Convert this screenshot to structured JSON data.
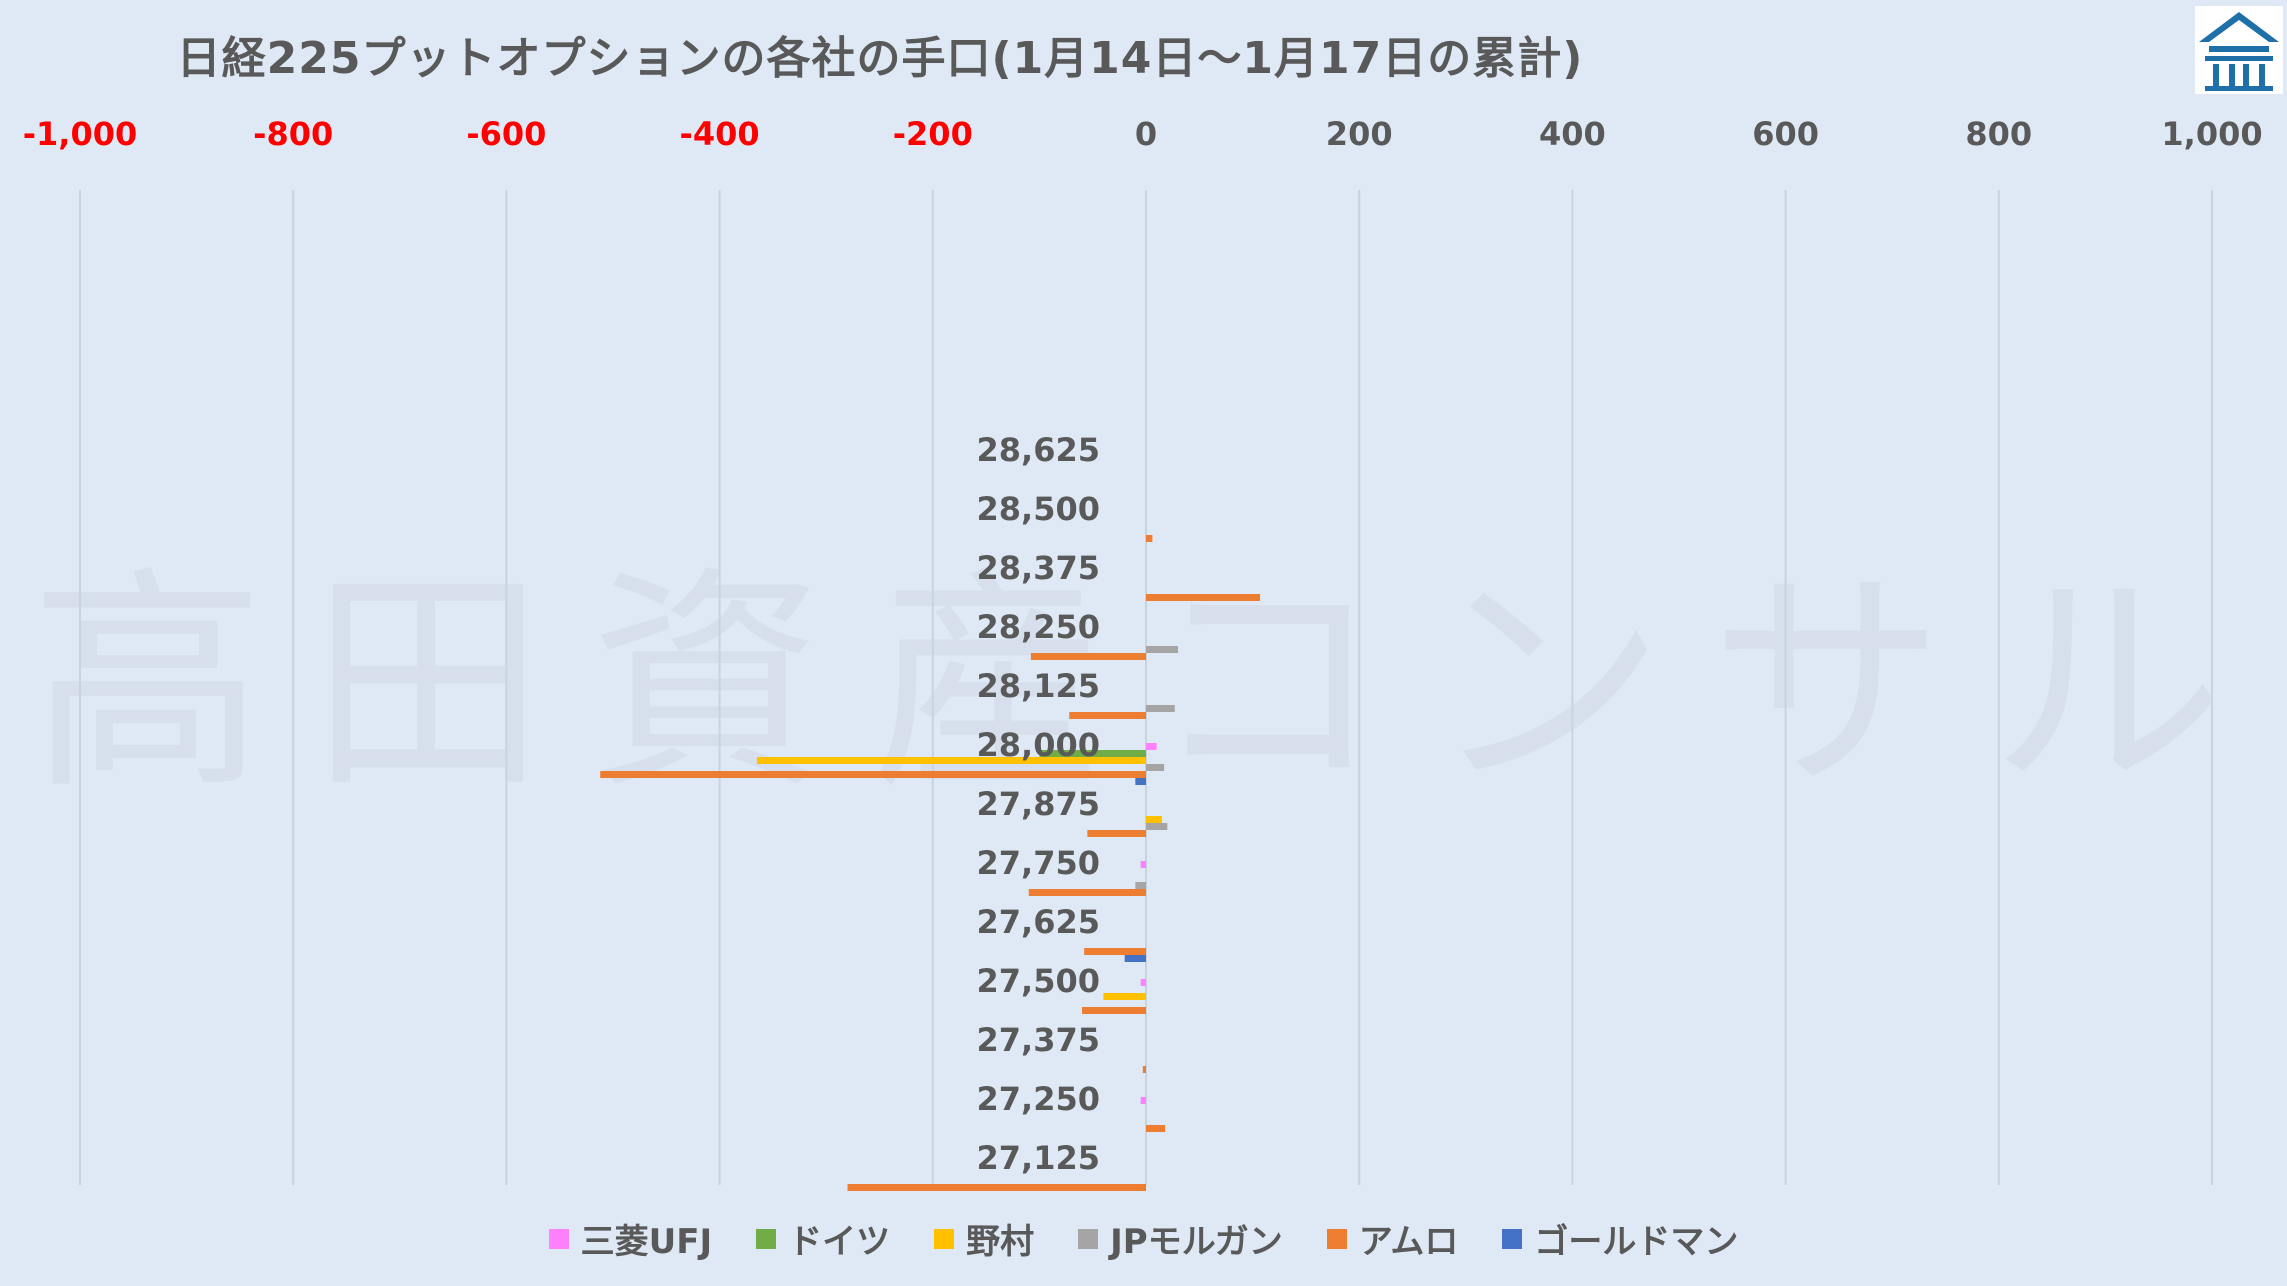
{
  "chart_data": {
    "type": "bar",
    "orientation": "horizontal",
    "title": "日経225プットオプションの各社の手口(1月14日～1月17日の累計)",
    "watermark": "高田資産コンサル",
    "xlim": [
      -1000,
      1000
    ],
    "x_ticks": [
      "-1,000",
      "-800",
      "-600",
      "-400",
      "-200",
      "0",
      "200",
      "400",
      "600",
      "800",
      "1,000"
    ],
    "x_tick_values": [
      -1000,
      -800,
      -600,
      -400,
      -200,
      0,
      200,
      400,
      600,
      800,
      1000
    ],
    "negative_tick_color": "#ff0000",
    "positive_tick_color": "#595959",
    "categories": [
      "28,625",
      "28,500",
      "28,375",
      "28,250",
      "28,125",
      "28,000",
      "27,875",
      "27,750",
      "27,625",
      "27,500",
      "27,375",
      "27,250",
      "27,125"
    ],
    "series": [
      {
        "name": "三菱UFJ",
        "color": "#ff80ff",
        "values": [
          0,
          0,
          0,
          0,
          0,
          10,
          0,
          -5,
          0,
          -5,
          0,
          -5,
          0
        ]
      },
      {
        "name": "ドイツ",
        "color": "#70ad47",
        "values": [
          0,
          0,
          0,
          0,
          0,
          -100,
          0,
          0,
          0,
          0,
          0,
          0,
          0
        ]
      },
      {
        "name": "野村",
        "color": "#ffc000",
        "values": [
          0,
          0,
          0,
          0,
          0,
          -365,
          15,
          0,
          0,
          -40,
          0,
          0,
          0
        ]
      },
      {
        "name": "JPモルガン",
        "color": "#a5a5a5",
        "values": [
          0,
          0,
          0,
          30,
          27,
          17,
          20,
          -10,
          0,
          0,
          0,
          0,
          0
        ]
      },
      {
        "name": "アムロ",
        "color": "#ed7d31",
        "values": [
          0,
          6,
          107,
          -108,
          -72,
          -512,
          -55,
          -110,
          -58,
          -60,
          -3,
          18,
          -280
        ]
      },
      {
        "name": "ゴールドマン",
        "color": "#4472c4",
        "values": [
          0,
          0,
          0,
          0,
          0,
          -10,
          0,
          0,
          -20,
          0,
          0,
          0,
          0
        ]
      }
    ],
    "grid": true,
    "legend_position": "bottom"
  }
}
